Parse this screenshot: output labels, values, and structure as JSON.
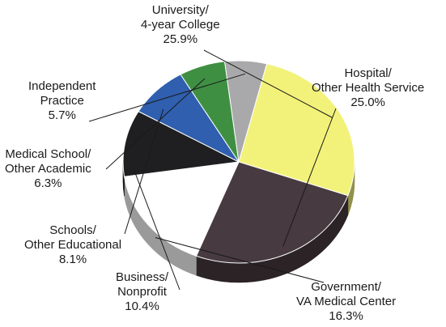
{
  "chart_data": {
    "type": "pie",
    "title": "",
    "slices": [
      {
        "key": "university",
        "line1": "University/",
        "line2": "4-year College",
        "value_label": "25.9%",
        "value": 25.9,
        "color": "#f2f27a"
      },
      {
        "key": "hospital",
        "line1": "Hospital/",
        "line2": "Other Health Service",
        "value_label": "25.0%",
        "value": 25.0,
        "color": "#473a40"
      },
      {
        "key": "government",
        "line1": "Government/",
        "line2": "VA Medical Center",
        "value_label": "16.3%",
        "value": 16.3,
        "color": "#ffffff"
      },
      {
        "key": "business",
        "line1": "Business/",
        "line2": "Nonprofit",
        "value_label": "10.4%",
        "value": 10.4,
        "color": "#1f1e20"
      },
      {
        "key": "schools",
        "line1": "Schools/",
        "line2": "Other Educational",
        "value_label": "8.1%",
        "value": 8.1,
        "color": "#2f5fae"
      },
      {
        "key": "medical",
        "line1": "Medical School/",
        "line2": "Other Academic",
        "value_label": "6.3%",
        "value": 6.3,
        "color": "#3f8f43"
      },
      {
        "key": "independent",
        "line1": "Independent",
        "line2": "Practice",
        "value_label": "5.7%",
        "value": 5.7,
        "color": "#a9a9ab"
      }
    ]
  }
}
